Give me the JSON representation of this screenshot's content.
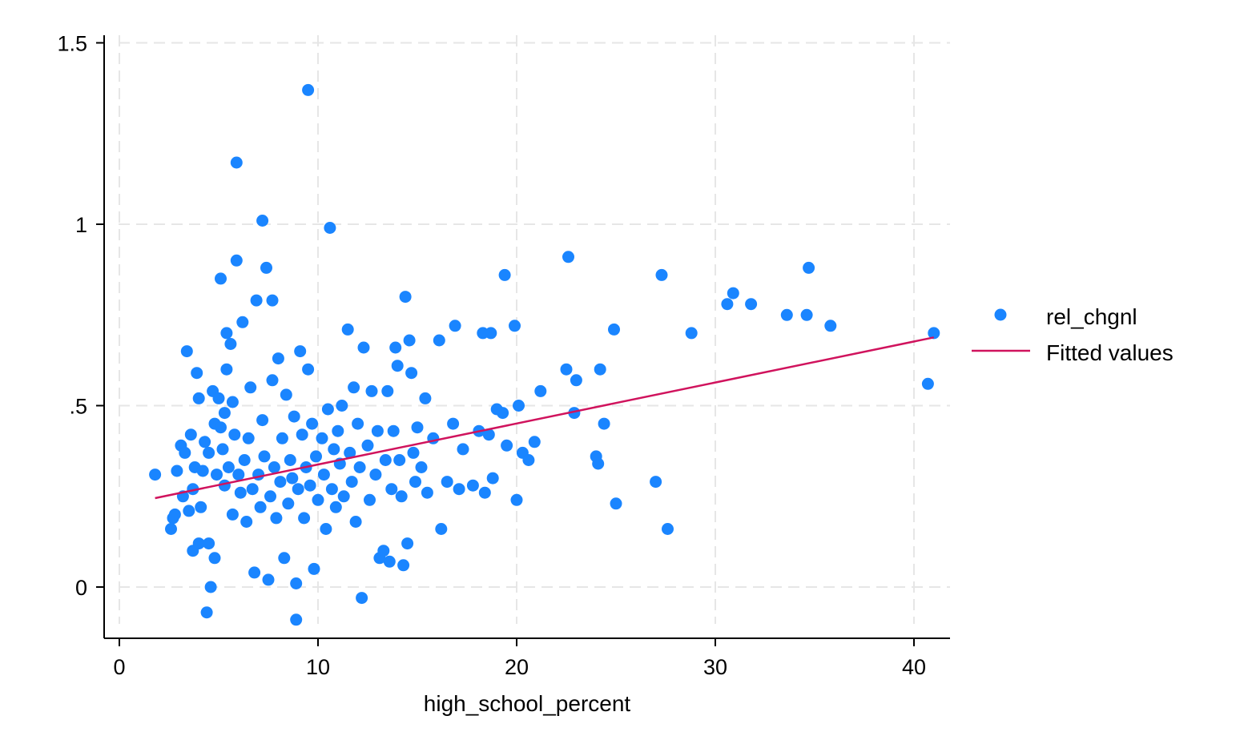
{
  "chart_data": {
    "type": "scatter",
    "xlabel": "high_school_percent",
    "ylabel": "",
    "xlim": [
      -0.8,
      41.8
    ],
    "ylim": [
      -0.14,
      1.55
    ],
    "x_ticks": [
      0,
      10,
      20,
      30,
      40
    ],
    "x_tick_labels": [
      "0",
      "10",
      "20",
      "30",
      "40"
    ],
    "y_ticks": [
      0,
      0.5,
      1,
      1.5
    ],
    "y_tick_labels": [
      "0",
      ".5",
      "1",
      "1.5"
    ],
    "grid": true,
    "legend_position": "right",
    "series": [
      {
        "name": "rel_chgnl",
        "kind": "scatter",
        "color": "#1a85ff",
        "points": [
          [
            1.8,
            0.31
          ],
          [
            2.6,
            0.16
          ],
          [
            2.7,
            0.19
          ],
          [
            2.8,
            0.2
          ],
          [
            2.9,
            0.32
          ],
          [
            3.1,
            0.39
          ],
          [
            3.2,
            0.25
          ],
          [
            3.3,
            0.37
          ],
          [
            3.4,
            0.65
          ],
          [
            3.5,
            0.21
          ],
          [
            3.6,
            0.42
          ],
          [
            3.7,
            0.27
          ],
          [
            3.7,
            0.1
          ],
          [
            3.8,
            0.33
          ],
          [
            3.9,
            0.59
          ],
          [
            4.0,
            0.52
          ],
          [
            4.0,
            0.12
          ],
          [
            4.1,
            0.22
          ],
          [
            4.2,
            0.32
          ],
          [
            4.3,
            0.4
          ],
          [
            4.4,
            -0.07
          ],
          [
            4.5,
            0.37
          ],
          [
            4.5,
            0.12
          ],
          [
            4.6,
            0.0
          ],
          [
            4.7,
            0.54
          ],
          [
            4.8,
            0.45
          ],
          [
            4.8,
            0.08
          ],
          [
            4.9,
            0.31
          ],
          [
            5.0,
            0.52
          ],
          [
            5.1,
            0.44
          ],
          [
            5.1,
            0.85
          ],
          [
            5.2,
            0.38
          ],
          [
            5.3,
            0.28
          ],
          [
            5.3,
            0.48
          ],
          [
            5.4,
            0.7
          ],
          [
            5.4,
            0.6
          ],
          [
            5.5,
            0.33
          ],
          [
            5.6,
            0.67
          ],
          [
            5.7,
            0.51
          ],
          [
            5.7,
            0.2
          ],
          [
            5.8,
            0.42
          ],
          [
            5.9,
            0.9
          ],
          [
            5.9,
            1.17
          ],
          [
            6.0,
            0.31
          ],
          [
            6.1,
            0.26
          ],
          [
            6.2,
            0.73
          ],
          [
            6.3,
            0.35
          ],
          [
            6.4,
            0.18
          ],
          [
            6.5,
            0.41
          ],
          [
            6.6,
            0.55
          ],
          [
            6.7,
            0.27
          ],
          [
            6.8,
            0.04
          ],
          [
            6.9,
            0.79
          ],
          [
            7.0,
            0.31
          ],
          [
            7.1,
            0.22
          ],
          [
            7.2,
            0.46
          ],
          [
            7.2,
            1.01
          ],
          [
            7.3,
            0.36
          ],
          [
            7.4,
            0.88
          ],
          [
            7.5,
            0.02
          ],
          [
            7.6,
            0.25
          ],
          [
            7.7,
            0.79
          ],
          [
            7.7,
            0.57
          ],
          [
            7.8,
            0.33
          ],
          [
            7.9,
            0.19
          ],
          [
            8.0,
            0.63
          ],
          [
            8.1,
            0.29
          ],
          [
            8.2,
            0.41
          ],
          [
            8.3,
            0.08
          ],
          [
            8.4,
            0.53
          ],
          [
            8.5,
            0.23
          ],
          [
            8.6,
            0.35
          ],
          [
            8.7,
            0.3
          ],
          [
            8.8,
            0.47
          ],
          [
            8.9,
            -0.09
          ],
          [
            8.9,
            0.01
          ],
          [
            9.0,
            0.27
          ],
          [
            9.1,
            0.65
          ],
          [
            9.2,
            0.42
          ],
          [
            9.3,
            0.19
          ],
          [
            9.4,
            0.33
          ],
          [
            9.5,
            0.6
          ],
          [
            9.5,
            1.37
          ],
          [
            9.6,
            0.28
          ],
          [
            9.7,
            0.45
          ],
          [
            9.8,
            0.05
          ],
          [
            9.9,
            0.36
          ],
          [
            10.0,
            0.24
          ],
          [
            10.2,
            0.41
          ],
          [
            10.3,
            0.31
          ],
          [
            10.4,
            0.16
          ],
          [
            10.5,
            0.49
          ],
          [
            10.6,
            0.99
          ],
          [
            10.7,
            0.27
          ],
          [
            10.8,
            0.38
          ],
          [
            10.9,
            0.22
          ],
          [
            11.0,
            0.43
          ],
          [
            11.1,
            0.34
          ],
          [
            11.2,
            0.5
          ],
          [
            11.3,
            0.25
          ],
          [
            11.5,
            0.71
          ],
          [
            11.6,
            0.37
          ],
          [
            11.7,
            0.29
          ],
          [
            11.8,
            0.55
          ],
          [
            11.9,
            0.18
          ],
          [
            12.0,
            0.45
          ],
          [
            12.1,
            0.33
          ],
          [
            12.2,
            -0.03
          ],
          [
            12.3,
            0.66
          ],
          [
            12.5,
            0.39
          ],
          [
            12.6,
            0.24
          ],
          [
            12.7,
            0.54
          ],
          [
            12.9,
            0.31
          ],
          [
            13.0,
            0.43
          ],
          [
            13.1,
            0.08
          ],
          [
            13.3,
            0.1
          ],
          [
            13.4,
            0.35
          ],
          [
            13.5,
            0.54
          ],
          [
            13.6,
            0.07
          ],
          [
            13.7,
            0.27
          ],
          [
            13.8,
            0.43
          ],
          [
            13.9,
            0.66
          ],
          [
            14.0,
            0.61
          ],
          [
            14.1,
            0.35
          ],
          [
            14.2,
            0.25
          ],
          [
            14.3,
            0.06
          ],
          [
            14.4,
            0.8
          ],
          [
            14.5,
            0.12
          ],
          [
            14.6,
            0.68
          ],
          [
            14.7,
            0.59
          ],
          [
            14.8,
            0.37
          ],
          [
            14.9,
            0.29
          ],
          [
            15.0,
            0.44
          ],
          [
            15.2,
            0.33
          ],
          [
            15.4,
            0.52
          ],
          [
            15.5,
            0.26
          ],
          [
            15.8,
            0.41
          ],
          [
            16.1,
            0.68
          ],
          [
            16.2,
            0.16
          ],
          [
            16.5,
            0.29
          ],
          [
            16.8,
            0.45
          ],
          [
            16.9,
            0.72
          ],
          [
            17.1,
            0.27
          ],
          [
            17.3,
            0.38
          ],
          [
            17.8,
            0.28
          ],
          [
            18.1,
            0.43
          ],
          [
            18.3,
            0.7
          ],
          [
            18.4,
            0.26
          ],
          [
            18.6,
            0.42
          ],
          [
            18.7,
            0.7
          ],
          [
            18.8,
            0.3
          ],
          [
            19.0,
            0.49
          ],
          [
            19.3,
            0.48
          ],
          [
            19.4,
            0.86
          ],
          [
            19.5,
            0.39
          ],
          [
            19.9,
            0.72
          ],
          [
            20.0,
            0.24
          ],
          [
            20.1,
            0.5
          ],
          [
            20.3,
            0.37
          ],
          [
            20.6,
            0.35
          ],
          [
            20.9,
            0.4
          ],
          [
            21.2,
            0.54
          ],
          [
            22.5,
            0.6
          ],
          [
            22.6,
            0.91
          ],
          [
            22.9,
            0.48
          ],
          [
            23.0,
            0.57
          ],
          [
            24.0,
            0.36
          ],
          [
            24.1,
            0.34
          ],
          [
            24.2,
            0.6
          ],
          [
            24.4,
            0.45
          ],
          [
            24.9,
            0.71
          ],
          [
            25.0,
            0.23
          ],
          [
            27.0,
            0.29
          ],
          [
            27.3,
            0.86
          ],
          [
            27.6,
            0.16
          ],
          [
            28.8,
            0.7
          ],
          [
            30.6,
            0.78
          ],
          [
            30.9,
            0.81
          ],
          [
            31.8,
            0.78
          ],
          [
            33.6,
            0.75
          ],
          [
            34.6,
            0.75
          ],
          [
            34.7,
            0.88
          ],
          [
            35.8,
            0.72
          ],
          [
            40.7,
            0.56
          ],
          [
            41.0,
            0.7
          ]
        ]
      },
      {
        "name": "Fitted values",
        "kind": "line",
        "color": "#d0135d",
        "points": [
          [
            1.8,
            0.245
          ],
          [
            41.0,
            0.688
          ]
        ]
      }
    ]
  }
}
